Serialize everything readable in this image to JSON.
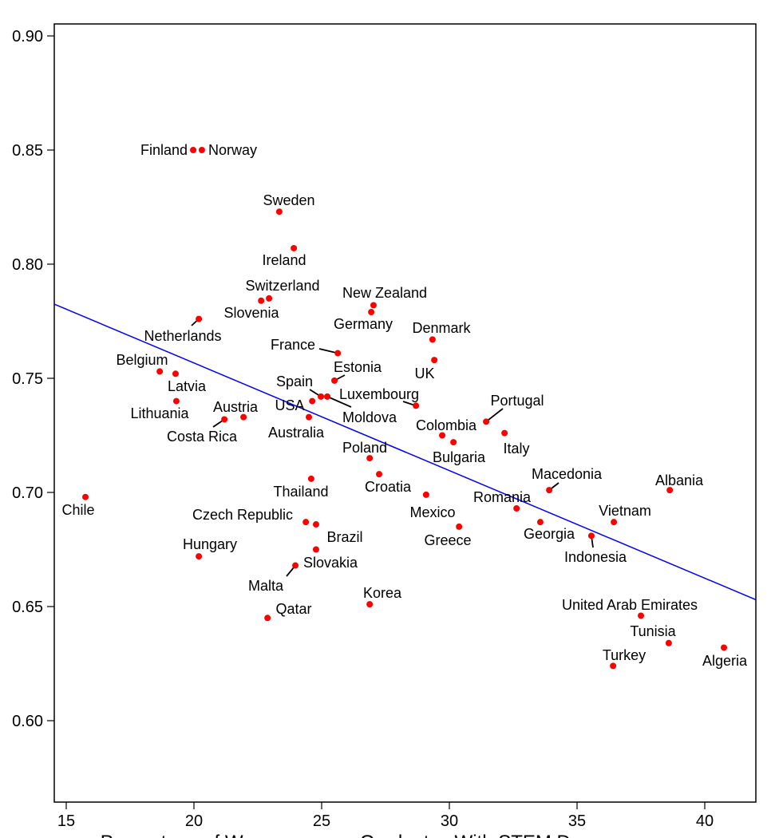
{
  "chart_data": {
    "type": "scatter",
    "xlabel": "Percentage of Women among Graduates With STEM Degrees",
    "ylabel": "",
    "xlim": [
      14.53,
      42.0
    ],
    "ylim": [
      0.564,
      0.905
    ],
    "x_ticks": [
      "15",
      "20",
      "25",
      "30",
      "35",
      "40"
    ],
    "y_ticks": [
      "0.60",
      "0.65",
      "0.70",
      "0.75",
      "0.80",
      "0.85",
      "0.90"
    ],
    "grid": false,
    "point_color": "#ff0000",
    "fit_line": {
      "color": "#0000ff",
      "x": [
        14.53,
        42.0
      ],
      "y": [
        0.7825,
        0.653
      ]
    },
    "points": [
      {
        "label": "Finland",
        "x": 19.97,
        "y": 0.85
      },
      {
        "label": "Norway",
        "x": 20.31,
        "y": 0.85
      },
      {
        "label": "Sweden",
        "x": 23.34,
        "y": 0.823
      },
      {
        "label": "Ireland",
        "x": 23.91,
        "y": 0.807
      },
      {
        "label": "Switzerland",
        "x": 22.94,
        "y": 0.785
      },
      {
        "label": "Slovenia",
        "x": 22.63,
        "y": 0.784
      },
      {
        "label": "New Zealand",
        "x": 27.03,
        "y": 0.782
      },
      {
        "label": "Germany",
        "x": 26.94,
        "y": 0.779
      },
      {
        "label": "Netherlands",
        "x": 20.19,
        "y": 0.776
      },
      {
        "label": "Denmark",
        "x": 29.34,
        "y": 0.767
      },
      {
        "label": "France",
        "x": 25.63,
        "y": 0.761
      },
      {
        "label": "UK",
        "x": 29.41,
        "y": 0.758
      },
      {
        "label": "Belgium",
        "x": 18.66,
        "y": 0.753
      },
      {
        "label": "Latvia",
        "x": 19.28,
        "y": 0.752
      },
      {
        "label": "Estonia",
        "x": 25.5,
        "y": 0.749
      },
      {
        "label": "Spain",
        "x": 24.97,
        "y": 0.742
      },
      {
        "label": "Luxembourg",
        "x": 28.69,
        "y": 0.738
      },
      {
        "label": "Lithuania",
        "x": 19.31,
        "y": 0.74
      },
      {
        "label": "Austria",
        "x": 21.94,
        "y": 0.733
      },
      {
        "label": "USA",
        "x": 24.63,
        "y": 0.74
      },
      {
        "label": "Moldova",
        "x": 25.22,
        "y": 0.742
      },
      {
        "label": "Portugal",
        "x": 31.44,
        "y": 0.731
      },
      {
        "label": "Costa Rica",
        "x": 21.19,
        "y": 0.732
      },
      {
        "label": "Australia",
        "x": 24.5,
        "y": 0.733
      },
      {
        "label": "Colombia",
        "x": 29.72,
        "y": 0.725
      },
      {
        "label": "Italy",
        "x": 32.16,
        "y": 0.726
      },
      {
        "label": "Bulgaria",
        "x": 30.16,
        "y": 0.722
      },
      {
        "label": "Poland",
        "x": 26.88,
        "y": 0.715
      },
      {
        "label": "Croatia",
        "x": 27.25,
        "y": 0.708
      },
      {
        "label": "Thailand",
        "x": 24.59,
        "y": 0.706
      },
      {
        "label": "Macedonia",
        "x": 33.91,
        "y": 0.701
      },
      {
        "label": "Albania",
        "x": 38.63,
        "y": 0.701
      },
      {
        "label": "Chile",
        "x": 15.75,
        "y": 0.698
      },
      {
        "label": "Mexico",
        "x": 29.09,
        "y": 0.699
      },
      {
        "label": "Romania",
        "x": 32.63,
        "y": 0.693
      },
      {
        "label": "Vietnam",
        "x": 36.44,
        "y": 0.687
      },
      {
        "label": "Czech Republic",
        "x": 24.38,
        "y": 0.687
      },
      {
        "label": "Brazil",
        "x": 24.78,
        "y": 0.686
      },
      {
        "label": "Georgia",
        "x": 33.56,
        "y": 0.687
      },
      {
        "label": "Greece",
        "x": 30.38,
        "y": 0.685
      },
      {
        "label": "Indonesia",
        "x": 35.56,
        "y": 0.681
      },
      {
        "label": "Hungary",
        "x": 20.19,
        "y": 0.672
      },
      {
        "label": "Slovakia",
        "x": 24.78,
        "y": 0.675
      },
      {
        "label": "Malta",
        "x": 23.97,
        "y": 0.668
      },
      {
        "label": "Korea",
        "x": 26.88,
        "y": 0.651
      },
      {
        "label": "Qatar",
        "x": 22.88,
        "y": 0.645
      },
      {
        "label": "United Arab Emirates",
        "x": 37.5,
        "y": 0.646
      },
      {
        "label": "Tunisia",
        "x": 38.59,
        "y": 0.634
      },
      {
        "label": "Turkey",
        "x": 36.41,
        "y": 0.624
      },
      {
        "label": "Algeria",
        "x": 40.75,
        "y": 0.632
      }
    ]
  }
}
